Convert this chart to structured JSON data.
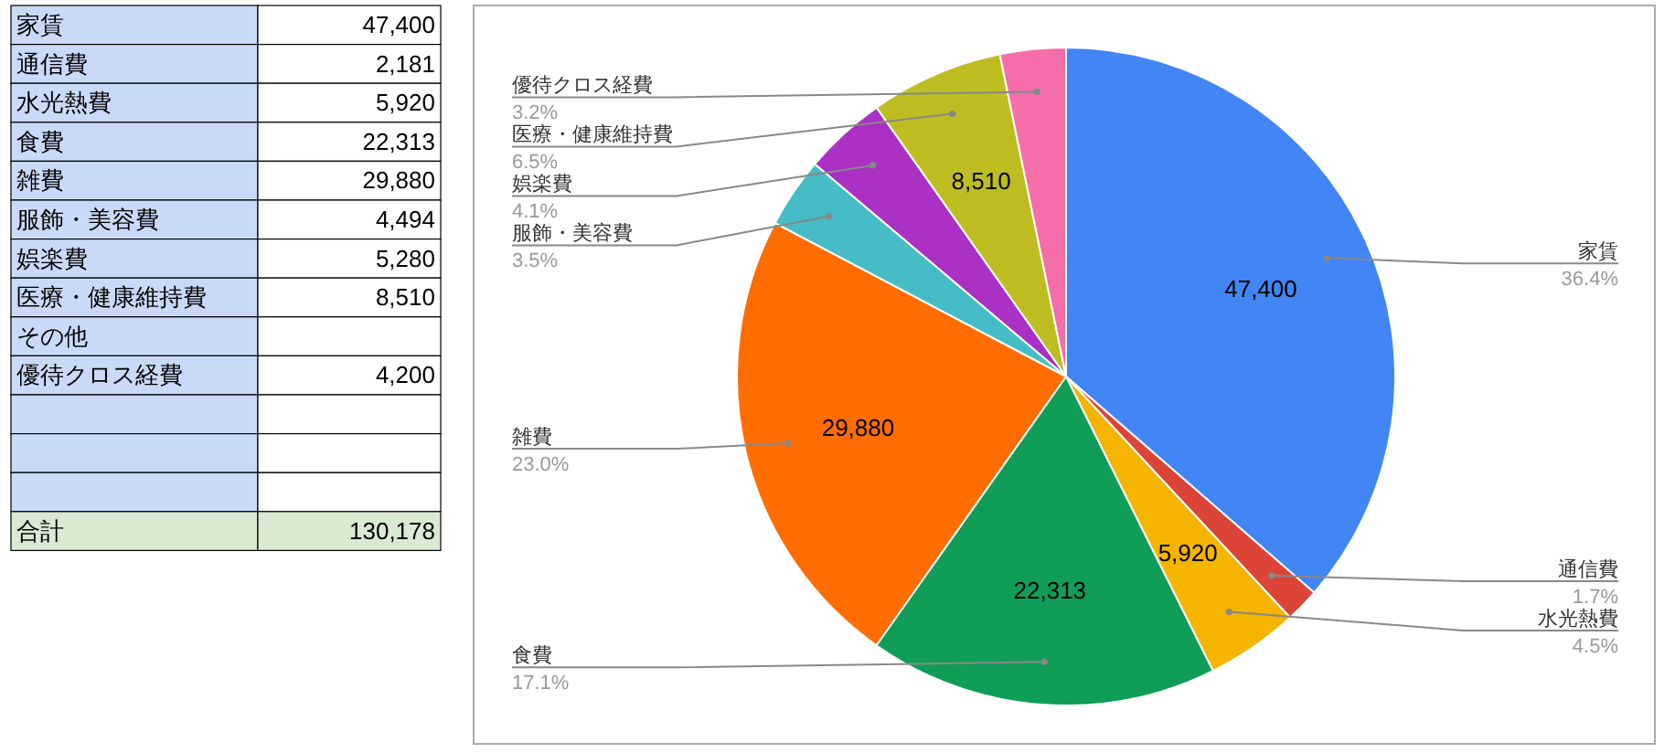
{
  "chart_data": [
    {
      "type": "other",
      "categories": [
        "家賃",
        "通信費",
        "水光熱費",
        "食費",
        "雑費",
        "服飾・美容費",
        "娯楽費",
        "医療・健康維持費",
        "その他",
        "優待クロス経費",
        null,
        null,
        null,
        "合計"
      ],
      "values": [
        47400,
        2181,
        5920,
        22313,
        29880,
        4494,
        5280,
        8510,
        null,
        4200,
        null,
        null,
        null,
        130178
      ],
      "value_labels": [
        "47,400",
        "2,181",
        "5,920",
        "22,313",
        "29,880",
        "4,494",
        "5,280",
        "8,510",
        null,
        "4,200",
        null,
        null,
        null,
        "130,178"
      ]
    },
    {
      "type": "pie",
      "categories": [
        "家賃",
        "通信費",
        "水光熱費",
        "食費",
        "雑費",
        "服飾・美容費",
        "娯楽費",
        "医療・健康維持費",
        "優待クロス経費"
      ],
      "values": [
        47400,
        2181,
        5920,
        22313,
        29880,
        4494,
        5280,
        8510,
        4200
      ],
      "colors": [
        "#4285f4",
        "#db4437",
        "#f4b400",
        "#0f9d58",
        "#ff6d01",
        "#46bdc6",
        "#ab30c4",
        "#bdbd22",
        "#f46ea9"
      ],
      "value_labels": [
        "47,400",
        null,
        "5,920",
        "22,313",
        "29,880",
        null,
        null,
        "8,510",
        null
      ],
      "annotations": [
        {
          "text": "36.4%",
          "x": "家賃"
        },
        {
          "text": "1.7%",
          "x": "通信費"
        },
        {
          "text": "4.5%",
          "x": "水光熱費"
        },
        {
          "text": "17.1%",
          "x": "食費"
        },
        {
          "text": "23.0%",
          "x": "雑費"
        },
        {
          "text": "3.5%",
          "x": "服飾・美容費"
        },
        {
          "text": "4.1%",
          "x": "娯楽費"
        },
        {
          "text": "6.5%",
          "x": "医療・健康維持費"
        },
        {
          "text": "3.2%",
          "x": "優待クロス経費"
        }
      ]
    }
  ]
}
